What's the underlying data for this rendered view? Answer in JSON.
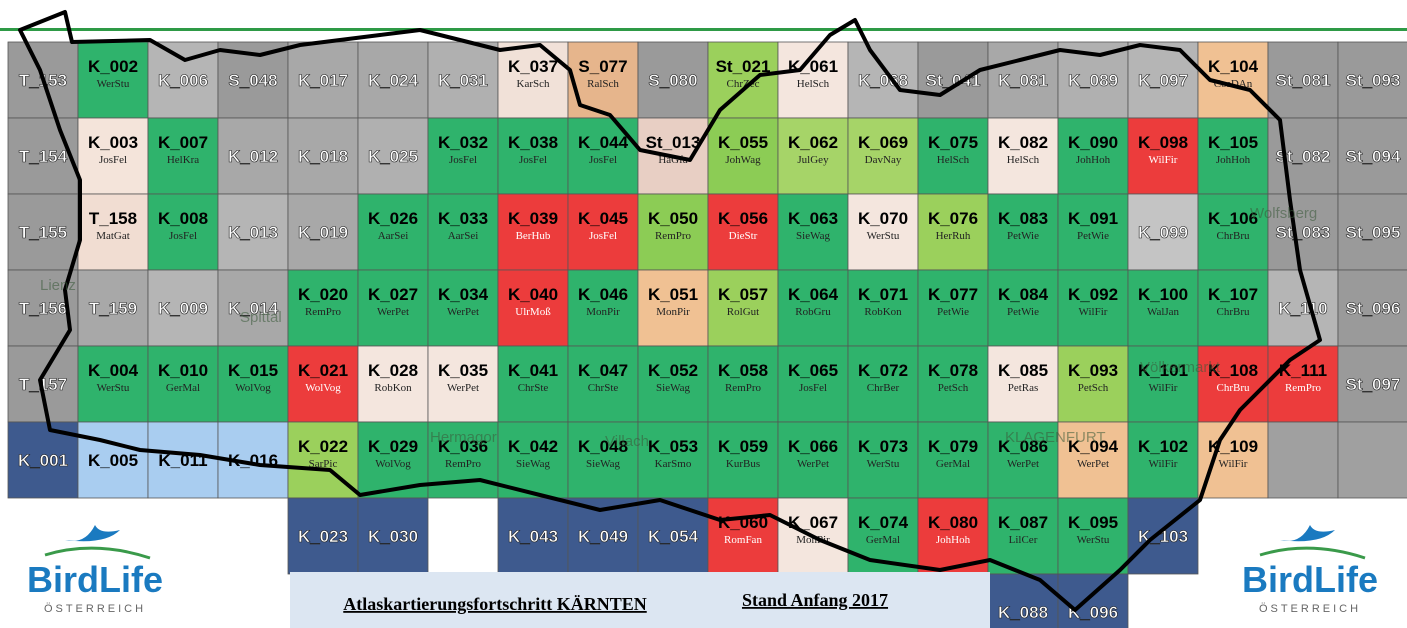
{
  "title": "Atlaskartierungsfortschritt KÄRNTEN",
  "status": "Stand Anfang 2017",
  "logo": {
    "name": "BirdLife",
    "country": "ÖSTERREICH"
  },
  "places": [
    "Lienz",
    "Spittal",
    "Hermagor",
    "Villach",
    "KLAGENFURT",
    "Wolfsberg",
    "Völkermarkt"
  ],
  "grid": {
    "rows": [
      [
        {
          "code": "T_153",
          "fill": "#9a9a9a"
        },
        {
          "code": "K_002",
          "observer": "WerStu",
          "fill": "#2fb36c"
        },
        {
          "code": "K_006",
          "fill": "#b5b5b5"
        },
        {
          "code": "S_048",
          "fill": "#9a9a9a"
        },
        {
          "code": "K_017",
          "fill": "#a8a8a8"
        },
        {
          "code": "K_024",
          "fill": "#a8a8a8"
        },
        {
          "code": "K_031",
          "fill": "#b0b0b0"
        },
        {
          "code": "K_037",
          "observer": "KarSch",
          "fill": "#f1e1d8"
        },
        {
          "code": "S_077",
          "observer": "RalSch",
          "fill": "#e6b58c"
        },
        {
          "code": "S_080",
          "fill": "#9a9a9a"
        },
        {
          "code": "St_021",
          "observer": "ChrZec",
          "fill": "#9bd05c"
        },
        {
          "code": "K_061",
          "observer": "HelSch",
          "fill": "#f4e6de"
        },
        {
          "code": "K_068",
          "fill": "#b5b5b5"
        },
        {
          "code": "St_041",
          "fill": "#9a9a9a"
        },
        {
          "code": "K_081",
          "fill": "#a8a8a8"
        },
        {
          "code": "K_089",
          "fill": "#b0b0b0"
        },
        {
          "code": "K_097",
          "fill": "#b5b5b5"
        },
        {
          "code": "K_104",
          "observer": "CosDAn",
          "fill": "#f0c193"
        },
        {
          "code": "St_081",
          "fill": "#9a9a9a"
        },
        {
          "code": "St_093",
          "fill": "#9a9a9a"
        }
      ],
      [
        {
          "code": "T_154",
          "fill": "#9a9a9a"
        },
        {
          "code": "K_003",
          "observer": "JosFel",
          "fill": "#f4e4da"
        },
        {
          "code": "K_007",
          "observer": "HelKra",
          "fill": "#2fb36c"
        },
        {
          "code": "K_012",
          "fill": "#a8a8a8"
        },
        {
          "code": "K_018",
          "fill": "#a8a8a8"
        },
        {
          "code": "K_025",
          "fill": "#b0b0b0"
        },
        {
          "code": "K_032",
          "observer": "JosFel",
          "fill": "#2fb36c"
        },
        {
          "code": "K_038",
          "observer": "JosFel",
          "fill": "#2fb36c"
        },
        {
          "code": "K_044",
          "observer": "JosFel",
          "fill": "#2fb36c"
        },
        {
          "code": "St_013",
          "observer": "HaGfa",
          "fill": "#e8cfc4"
        },
        {
          "code": "K_055",
          "observer": "JohWag",
          "fill": "#8ccc55"
        },
        {
          "code": "K_062",
          "observer": "JulGey",
          "fill": "#a6d468"
        },
        {
          "code": "K_069",
          "observer": "DavNay",
          "fill": "#a6d468"
        },
        {
          "code": "K_075",
          "observer": "HelSch",
          "fill": "#2fb36c"
        },
        {
          "code": "K_082",
          "observer": "HelSch",
          "fill": "#f4e6de"
        },
        {
          "code": "K_090",
          "observer": "JohHoh",
          "fill": "#2fb36c"
        },
        {
          "code": "K_098",
          "observer": "WilFir",
          "fill": "#ec3c3c"
        },
        {
          "code": "K_105",
          "observer": "JohHoh",
          "fill": "#2fb36c"
        },
        {
          "code": "St_082",
          "fill": "#9a9a9a"
        },
        {
          "code": "St_094",
          "fill": "#9a9a9a"
        }
      ],
      [
        {
          "code": "T_155",
          "fill": "#9a9a9a"
        },
        {
          "code": "T_158",
          "observer": "MatGat",
          "fill": "#f1ddd2"
        },
        {
          "code": "K_008",
          "observer": "JosFel",
          "fill": "#2fb36c"
        },
        {
          "code": "K_013",
          "fill": "#b5b5b5"
        },
        {
          "code": "K_019",
          "fill": "#a8a8a8"
        },
        {
          "code": "K_026",
          "observer": "AarSei",
          "fill": "#2fb36c"
        },
        {
          "code": "K_033",
          "observer": "AarSei",
          "fill": "#2fb36c"
        },
        {
          "code": "K_039",
          "observer": "BerHub",
          "fill": "#ec3c3c"
        },
        {
          "code": "K_045",
          "observer": "JosFel",
          "fill": "#ec3c3c"
        },
        {
          "code": "K_050",
          "observer": "RemPro",
          "fill": "#8ccc55"
        },
        {
          "code": "K_056",
          "observer": "DieStr",
          "fill": "#ec3c3c"
        },
        {
          "code": "K_063",
          "observer": "SieWag",
          "fill": "#2fb36c"
        },
        {
          "code": "K_070",
          "observer": "WerStu",
          "fill": "#f4e6de"
        },
        {
          "code": "K_076",
          "observer": "HerRuh",
          "fill": "#9bd05c"
        },
        {
          "code": "K_083",
          "observer": "PetWie",
          "fill": "#2fb36c"
        },
        {
          "code": "K_091",
          "observer": "PetWie",
          "fill": "#2fb36c"
        },
        {
          "code": "K_099",
          "fill": "#c4c4c4"
        },
        {
          "code": "K_106",
          "observer": "ChrBru",
          "fill": "#2fb36c"
        },
        {
          "code": "St_083",
          "fill": "#9a9a9a"
        },
        {
          "code": "St_095",
          "fill": "#9a9a9a"
        }
      ],
      [
        {
          "code": "T_156",
          "fill": "#9a9a9a"
        },
        {
          "code": "T_159",
          "fill": "#a8a8a8"
        },
        {
          "code": "K_009",
          "fill": "#b5b5b5"
        },
        {
          "code": "K_014",
          "fill": "#a8a8a8"
        },
        {
          "code": "K_020",
          "observer": "RemPro",
          "fill": "#2fb36c"
        },
        {
          "code": "K_027",
          "observer": "WerPet",
          "fill": "#2fb36c"
        },
        {
          "code": "K_034",
          "observer": "WerPet",
          "fill": "#2fb36c"
        },
        {
          "code": "K_040",
          "observer": "UlrMoß",
          "fill": "#ec3c3c"
        },
        {
          "code": "K_046",
          "observer": "MonPir",
          "fill": "#2fb36c"
        },
        {
          "code": "K_051",
          "observer": "MonPir",
          "fill": "#f0c193"
        },
        {
          "code": "K_057",
          "observer": "RolGut",
          "fill": "#9bd05c"
        },
        {
          "code": "K_064",
          "observer": "RobGru",
          "fill": "#2fb36c"
        },
        {
          "code": "K_071",
          "observer": "RobKon",
          "fill": "#2fb36c"
        },
        {
          "code": "K_077",
          "observer": "PetWie",
          "fill": "#2fb36c"
        },
        {
          "code": "K_084",
          "observer": "PetWie",
          "fill": "#2fb36c"
        },
        {
          "code": "K_092",
          "observer": "WilFir",
          "fill": "#2fb36c"
        },
        {
          "code": "K_100",
          "observer": "WalJan",
          "fill": "#2fb36c"
        },
        {
          "code": "K_107",
          "observer": "ChrBru",
          "fill": "#2fb36c"
        },
        {
          "code": "K_110",
          "fill": "#b5b5b5"
        },
        {
          "code": "St_096",
          "fill": "#9a9a9a"
        }
      ],
      [
        {
          "code": "T_157",
          "fill": "#9a9a9a"
        },
        {
          "code": "K_004",
          "observer": "WerStu",
          "fill": "#2fb36c"
        },
        {
          "code": "K_010",
          "observer": "GerMal",
          "fill": "#2fb36c"
        },
        {
          "code": "K_015",
          "observer": "WolVog",
          "fill": "#2fb36c"
        },
        {
          "code": "K_021",
          "observer": "WolVog",
          "fill": "#ec3c3c"
        },
        {
          "code": "K_028",
          "observer": "RobKon",
          "fill": "#f4e6de"
        },
        {
          "code": "K_035",
          "observer": "WerPet",
          "fill": "#f4e6de"
        },
        {
          "code": "K_041",
          "observer": "ChrSte",
          "fill": "#2fb36c"
        },
        {
          "code": "K_047",
          "observer": "ChrSte",
          "fill": "#2fb36c"
        },
        {
          "code": "K_052",
          "observer": "SieWag",
          "fill": "#2fb36c"
        },
        {
          "code": "K_058",
          "observer": "RemPro",
          "fill": "#2fb36c"
        },
        {
          "code": "K_065",
          "observer": "JosFel",
          "fill": "#2fb36c"
        },
        {
          "code": "K_072",
          "observer": "ChrBer",
          "fill": "#2fb36c"
        },
        {
          "code": "K_078",
          "observer": "PetSch",
          "fill": "#2fb36c"
        },
        {
          "code": "K_085",
          "observer": "PetRas",
          "fill": "#f4e6de"
        },
        {
          "code": "K_093",
          "observer": "PetSch",
          "fill": "#9bd05c"
        },
        {
          "code": "K_101",
          "observer": "WilFir",
          "fill": "#2fb36c"
        },
        {
          "code": "K_108",
          "observer": "ChrBru",
          "fill": "#ec3c3c"
        },
        {
          "code": "K_111",
          "observer": "RemPro",
          "fill": "#ec3c3c"
        },
        {
          "code": "St_097",
          "fill": "#9a9a9a"
        }
      ],
      [
        {
          "code": "K_001",
          "fill": "#3e5a8e"
        },
        {
          "code": "K_005",
          "fill": "#a9cdf0"
        },
        {
          "code": "K_011",
          "fill": "#a9cdf0"
        },
        {
          "code": "K_016",
          "fill": "#a9cdf0"
        },
        {
          "code": "K_022",
          "observer": "SarPic",
          "fill": "#9bd05c"
        },
        {
          "code": "K_029",
          "observer": "WolVog",
          "fill": "#2fb36c"
        },
        {
          "code": "K_036",
          "observer": "RemPro",
          "fill": "#2fb36c"
        },
        {
          "code": "K_042",
          "observer": "SieWag",
          "fill": "#2fb36c"
        },
        {
          "code": "K_048",
          "observer": "SieWag",
          "fill": "#2fb36c"
        },
        {
          "code": "K_053",
          "observer": "KarSmo",
          "fill": "#2fb36c"
        },
        {
          "code": "K_059",
          "observer": "KurBus",
          "fill": "#2fb36c"
        },
        {
          "code": "K_066",
          "observer": "WerPet",
          "fill": "#2fb36c"
        },
        {
          "code": "K_073",
          "observer": "WerStu",
          "fill": "#2fb36c"
        },
        {
          "code": "K_079",
          "observer": "GerMal",
          "fill": "#2fb36c"
        },
        {
          "code": "K_086",
          "observer": "WerPet",
          "fill": "#2fb36c"
        },
        {
          "code": "K_094",
          "observer": "WerPet",
          "fill": "#f0c193"
        },
        {
          "code": "K_102",
          "observer": "WilFir",
          "fill": "#2fb36c"
        },
        {
          "code": "K_109",
          "observer": "WilFir",
          "fill": "#f0c193"
        },
        {
          "fill": "#a0a0a0"
        },
        {
          "fill": "#a0a0a0"
        }
      ],
      [
        null,
        null,
        null,
        null,
        {
          "code": "K_023",
          "fill": "#3e5a8e"
        },
        {
          "code": "K_030",
          "fill": "#3e5a8e"
        },
        null,
        {
          "code": "K_043",
          "fill": "#3e5a8e"
        },
        {
          "code": "K_049",
          "fill": "#3e5a8e"
        },
        {
          "code": "K_054",
          "fill": "#3e5a8e"
        },
        {
          "code": "K_060",
          "observer": "RomFan",
          "fill": "#ec3c3c"
        },
        {
          "code": "K_067",
          "observer": "MonPir",
          "fill": "#f4e6de"
        },
        {
          "code": "K_074",
          "observer": "GerMal",
          "fill": "#2fb36c"
        },
        {
          "code": "K_080",
          "observer": "JohHoh",
          "fill": "#ec3c3c"
        },
        {
          "code": "K_087",
          "observer": "LilCer",
          "fill": "#2fb36c"
        },
        {
          "code": "K_095",
          "observer": "WerStu",
          "fill": "#2fb36c"
        },
        {
          "code": "K_103",
          "fill": "#3e5a8e"
        }
      ],
      [
        null,
        null,
        null,
        null,
        null,
        null,
        null,
        null,
        null,
        null,
        null,
        null,
        null,
        null,
        {
          "code": "K_088",
          "fill": "#3e5a8e"
        },
        {
          "code": "K_096",
          "fill": "#3e5a8e"
        }
      ]
    ]
  }
}
